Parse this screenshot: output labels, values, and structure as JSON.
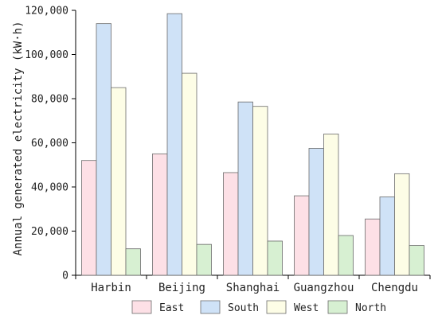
{
  "chart_data": {
    "type": "bar",
    "title": "",
    "xlabel": "",
    "ylabel": "Annual generated electricity (kW·h)",
    "ylim": [
      0,
      120000
    ],
    "yticks": [
      0,
      20000,
      40000,
      60000,
      80000,
      100000,
      120000
    ],
    "ytick_labels": [
      "0",
      "20,000",
      "40,000",
      "60,000",
      "80,000",
      "100,000",
      "120,000"
    ],
    "grid": false,
    "legend_position": "bottom",
    "categories": [
      "Harbin",
      "Beijing",
      "Shanghai",
      "Guangzhou",
      "Chengdu"
    ],
    "series": [
      {
        "name": "East",
        "color": "#fde0e6",
        "values": [
          52000,
          55000,
          46500,
          36000,
          25500
        ]
      },
      {
        "name": "South",
        "color": "#cfe2f7",
        "values": [
          114000,
          118500,
          78500,
          57500,
          35500
        ]
      },
      {
        "name": "West",
        "color": "#fdfde6",
        "values": [
          85000,
          91500,
          76500,
          64000,
          46000
        ]
      },
      {
        "name": "North",
        "color": "#d7f0d2",
        "values": [
          12000,
          14000,
          15500,
          18000,
          13500
        ]
      }
    ]
  }
}
